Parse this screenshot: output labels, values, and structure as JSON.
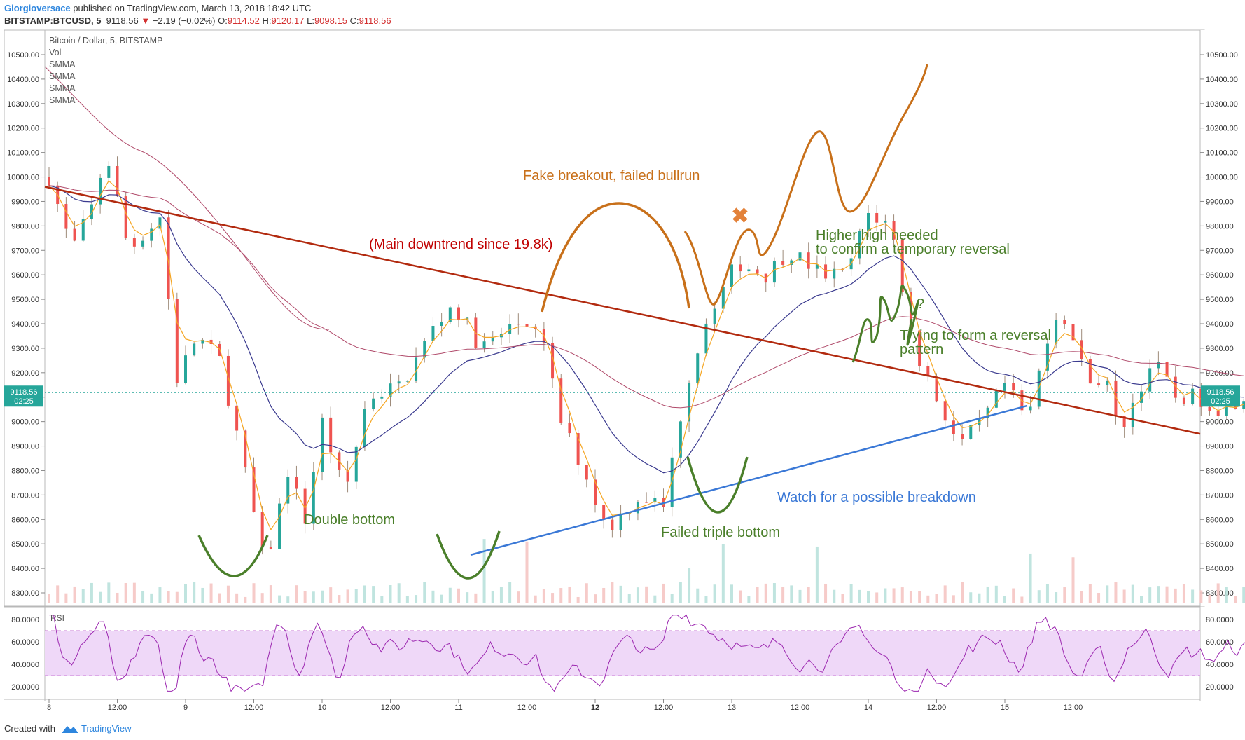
{
  "header": {
    "author": "Giorgioversace",
    "published_text": " published on TradingView.com, March 13, 2018 18:42 UTC",
    "symbol": "BITSTAMP:BTCUSD, 5",
    "last": "9118.56",
    "change_arrow": "▼",
    "change": "−2.19 (−0.02%)",
    "o_label": "O:",
    "o_value": "9114.52",
    "h_label": "H:",
    "h_value": "9120.17",
    "l_label": "L:",
    "l_value": "9098.15",
    "c_label": "C:",
    "c_value": "9118.56"
  },
  "overlay_labels": [
    "Bitcoin / Dollar, 5, BITSTAMP",
    "Vol",
    "SMMA",
    "SMMA",
    "SMMA",
    "SMMA"
  ],
  "price_tag": {
    "value": "9118.56",
    "timer": "02:25"
  },
  "rsi_label": "RSI",
  "footer": {
    "created": "Created with",
    "brand": "TradingView"
  },
  "colors": {
    "candle_up": "#26a69a",
    "candle_down": "#ef5350",
    "candle_line": "#9e8b7a",
    "smma_fast": "#f5a623",
    "smma_mid": "#3b3b8f",
    "smma_slow": "#b04a6a",
    "rsi": "#9c27b0",
    "rsi_band": "#efd8f8",
    "downtrend": "#b22a0f",
    "support": "#3a78d6",
    "bottoms": "#4a7f2a",
    "fake": "#c8701a",
    "price_line": "#26a69a"
  },
  "annotations": {
    "fake": "Fake breakout, failed bullrun",
    "downtrend": "(Main downtrend since 19.8k)",
    "higher1": "Higher high needed",
    "higher2": "to confirm a temporary reversal",
    "trying1": "Trying to form a reversal",
    "trying2": "pattern",
    "question": "?",
    "double": "Double bottom",
    "watch": "Watch for a possible breakdown",
    "failed": "Failed triple bottom",
    "x_mark": "✖"
  },
  "chart_data": [
    {
      "type": "candlestick",
      "title": "Bitcoin / Dollar, 5, BITSTAMP",
      "y_ticks": [
        8300,
        8400,
        8500,
        8600,
        8700,
        8800,
        8900,
        9000,
        9100,
        9200,
        9300,
        9400,
        9500,
        9600,
        9700,
        9800,
        9900,
        10000,
        10100,
        10200,
        10300,
        10400,
        10500
      ],
      "ylim": [
        8250,
        10560
      ],
      "x_ticks": [
        "8",
        "12:00",
        "9",
        "12:00",
        "10",
        "12:00",
        "11",
        "12:00",
        "12",
        "12:00",
        "13",
        "12:00",
        "14",
        "12:00",
        "15",
        "12:00"
      ],
      "key_points": [
        {
          "t": "Mar 8 00:00",
          "price": 10000
        },
        {
          "t": "Mar 8 10:00",
          "price": 10110
        },
        {
          "t": "Mar 9 10:00",
          "price": 8360
        },
        {
          "t": "Mar 9 23:00",
          "price": 9480
        },
        {
          "t": "Mar 10 14:00",
          "price": 9460
        },
        {
          "t": "Mar 11 02:00",
          "price": 8500
        },
        {
          "t": "Mar 11 13:00",
          "price": 9700
        },
        {
          "t": "Mar 12 10:00",
          "price": 9900
        },
        {
          "t": "Mar 12 18:00",
          "price": 8800
        },
        {
          "t": "Mar 13 06:00",
          "price": 9460
        },
        {
          "t": "Mar 13 12:00",
          "price": 8820
        },
        {
          "t": "Mar 13 18:40",
          "price": 9118.56
        }
      ],
      "last_price": 9118.56,
      "trendlines": [
        {
          "name": "Main downtrend since 19.8k",
          "from": [
            "Mar 8 00:00",
            9960
          ],
          "to": [
            "Mar 15 20:00",
            8950
          ]
        },
        {
          "name": "support",
          "from": [
            "Mar 11 02:00",
            8455
          ],
          "to": [
            "Mar 15 00:00",
            9065
          ]
        }
      ]
    },
    {
      "type": "line",
      "title": "RSI",
      "y_ticks": [
        20,
        40,
        60,
        80
      ],
      "ylim": [
        13,
        85
      ],
      "band": [
        30,
        70
      ],
      "last_value": 47
    }
  ]
}
